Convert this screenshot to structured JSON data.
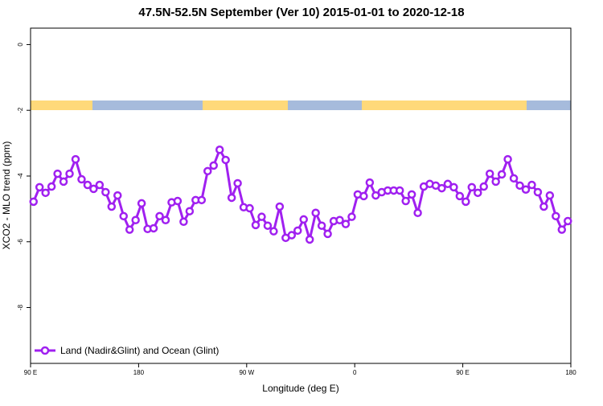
{
  "chart_data": {
    "type": "line",
    "title": "47.5N-52.5N September (Ver 10)   2015-01-01 to 2020-12-18",
    "x_label": "Longitude (deg E)",
    "y_label": "XCO2 - MLO trend (ppm)",
    "xlim": [
      90,
      540
    ],
    "xticks": [
      {
        "value": 90,
        "label": "90 E"
      },
      {
        "value": 180,
        "label": "180"
      },
      {
        "value": 270,
        "label": "90 W"
      },
      {
        "value": 360,
        "label": "0"
      },
      {
        "value": 450,
        "label": "90 E"
      },
      {
        "value": 540,
        "label": "180"
      }
    ],
    "ylim": [
      -9.7,
      0.5
    ],
    "yticks": [
      0,
      -2,
      -4,
      -6,
      -8
    ],
    "legend": "bottom left",
    "x": [
      92.5,
      97.5,
      102.5,
      107.5,
      112.5,
      117.5,
      122.5,
      127.5,
      132.5,
      137.5,
      142.5,
      147.5,
      152.5,
      157.5,
      162.5,
      167.5,
      172.5,
      177.5,
      182.5,
      187.5,
      192.5,
      197.5,
      202.5,
      207.5,
      212.5,
      217.5,
      222.5,
      227.5,
      232.5,
      237.5,
      242.5,
      247.5,
      252.5,
      257.5,
      262.5,
      267.5,
      272.5,
      277.5,
      282.5,
      287.5,
      292.5,
      297.5,
      302.5,
      307.5,
      312.5,
      317.5,
      322.5,
      327.5,
      332.5,
      337.5,
      342.5,
      347.5,
      352.5,
      357.5,
      362.5,
      367.5,
      372.5,
      377.5,
      382.5,
      387.5,
      392.5,
      397.5,
      402.5,
      407.5,
      412.5,
      417.5,
      422.5,
      427.5,
      432.5,
      437.5,
      442.5,
      447.5,
      452.5,
      457.5,
      462.5,
      467.5,
      472.5,
      477.5,
      482.5,
      487.5,
      492.5,
      497.5,
      502.5,
      507.5,
      512.5,
      517.5,
      522.5,
      527.5,
      532.5,
      537.5
    ],
    "series": [
      {
        "name": "Land (Nadir&Glint) and Ocean (Glint)",
        "color": "#a020f0",
        "values": [
          -4.78,
          -4.34,
          -4.51,
          -4.32,
          -3.93,
          -4.17,
          -3.93,
          -3.49,
          -4.1,
          -4.27,
          -4.39,
          -4.27,
          -4.49,
          -4.93,
          -4.59,
          -5.22,
          -5.63,
          -5.34,
          -4.83,
          -5.61,
          -5.59,
          -5.22,
          -5.34,
          -4.8,
          -4.76,
          -5.39,
          -5.07,
          -4.73,
          -4.73,
          -3.85,
          -3.68,
          -3.2,
          -3.51,
          -4.66,
          -4.22,
          -4.95,
          -4.98,
          -5.49,
          -5.24,
          -5.51,
          -5.68,
          -4.93,
          -5.88,
          -5.8,
          -5.66,
          -5.32,
          -5.93,
          -5.12,
          -5.51,
          -5.76,
          -5.37,
          -5.34,
          -5.46,
          -5.24,
          -4.56,
          -4.61,
          -4.2,
          -4.59,
          -4.49,
          -4.44,
          -4.44,
          -4.44,
          -4.76,
          -4.56,
          -5.12,
          -4.32,
          -4.24,
          -4.29,
          -4.37,
          -4.24,
          -4.34,
          -4.61,
          -4.78,
          -4.34,
          -4.51,
          -4.32,
          -3.93,
          -4.17,
          -3.95,
          -3.49,
          -4.07,
          -4.29,
          -4.41,
          -4.27,
          -4.49,
          -4.93,
          -4.59,
          -5.22,
          -5.63,
          -5.37
        ]
      }
    ]
  }
}
